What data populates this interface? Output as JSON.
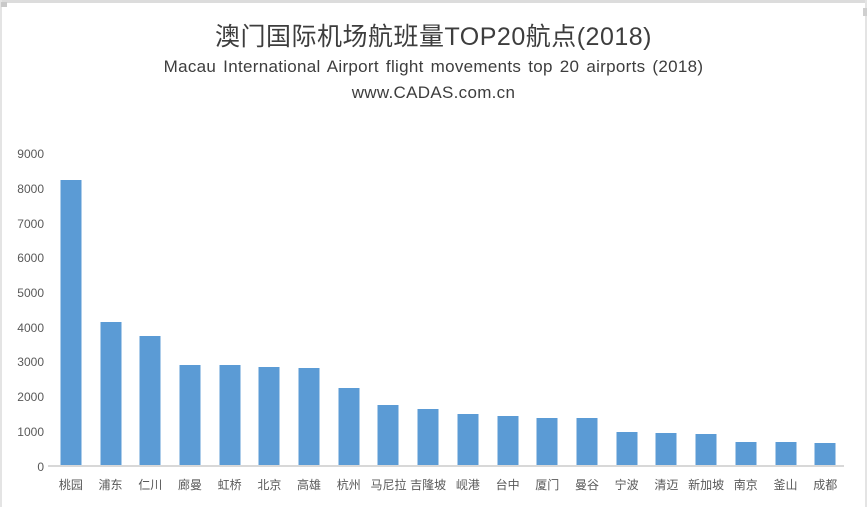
{
  "page": {
    "title": "澳门国际机场航班量TOP20航点(2018)",
    "subtitle": "Macau International Airport  flight movements top 20 airports (2018)",
    "watermark": "www.CADAS.com.cn"
  },
  "colors": {
    "bar": "#5B9BD5",
    "axis_line": "#D8D8D8",
    "tick_text": "#595959",
    "title_text": "#3D3D3D"
  },
  "chart_data": {
    "type": "bar",
    "title": "澳门国际机场航班量TOP20航点(2018)",
    "subtitle": "Macau International Airport  flight movements top 20 airports (2018)",
    "watermark": "www.CADAS.com.cn",
    "categories": [
      "桃园",
      "浦东",
      "仁川",
      "廊曼",
      "虹桥",
      "北京",
      "高雄",
      "杭州",
      "马尼拉",
      "吉隆坡",
      "岘港",
      "台中",
      "厦门",
      "曼谷",
      "宁波",
      "清迈",
      "新加坡",
      "南京",
      "釜山",
      "成都"
    ],
    "values": [
      8260,
      4140,
      3740,
      2920,
      2900,
      2870,
      2830,
      2250,
      1750,
      1650,
      1500,
      1430,
      1390,
      1390,
      990,
      960,
      930,
      700,
      690,
      670
    ],
    "xlabel": "",
    "ylabel": "",
    "ylim": [
      0,
      9000
    ],
    "ytick_step": 1000,
    "yticks": [
      "0",
      "1000",
      "2000",
      "3000",
      "4000",
      "5000",
      "6000",
      "7000",
      "8000",
      "9000"
    ],
    "grid": false,
    "legend": false,
    "bar_color": "#5B9BD5"
  }
}
